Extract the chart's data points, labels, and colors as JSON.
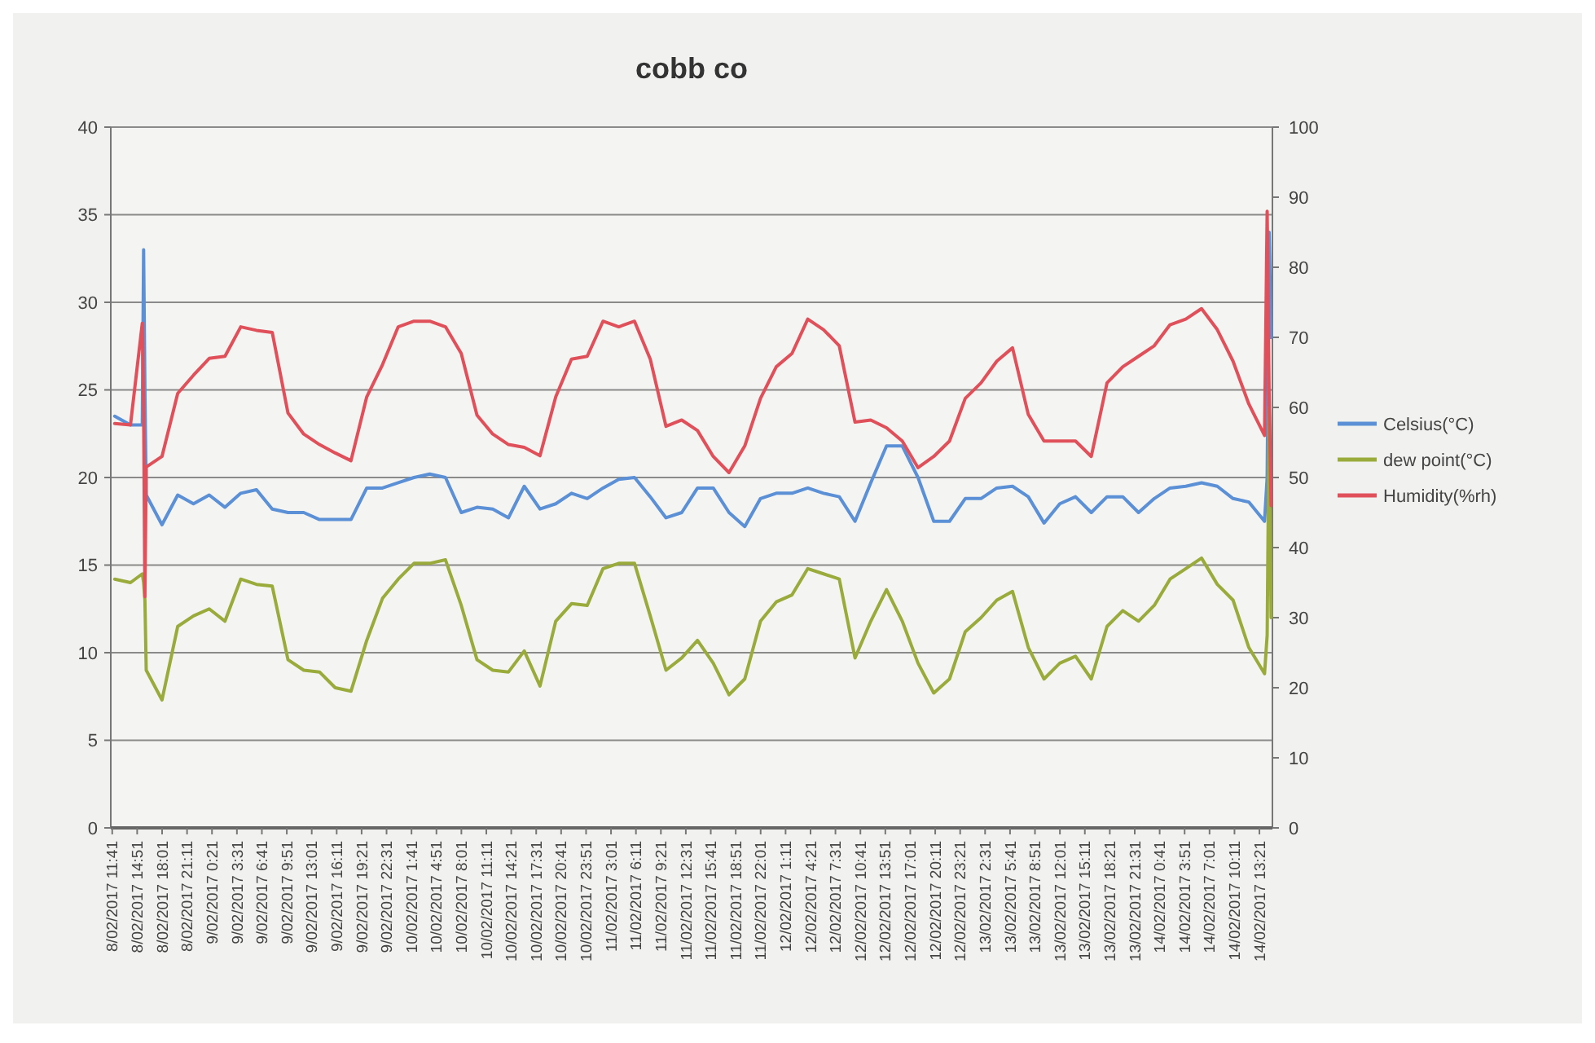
{
  "chart_data": {
    "type": "line",
    "title": "cobb co",
    "x": [
      "2017-02-08T12:00",
      "2017-02-08T14:00",
      "2017-02-08T15:30",
      "2017-02-08T15:40",
      "2017-02-08T15:50",
      "2017-02-08T16:00",
      "2017-02-08T18:00",
      "2017-02-08T20:00",
      "2017-02-08T22:00",
      "2017-02-09T00:00",
      "2017-02-09T02:00",
      "2017-02-09T04:00",
      "2017-02-09T06:00",
      "2017-02-09T08:00",
      "2017-02-09T10:00",
      "2017-02-09T12:00",
      "2017-02-09T14:00",
      "2017-02-09T16:00",
      "2017-02-09T18:00",
      "2017-02-09T20:00",
      "2017-02-09T22:00",
      "2017-02-10T00:00",
      "2017-02-10T02:00",
      "2017-02-10T04:00",
      "2017-02-10T06:00",
      "2017-02-10T08:00",
      "2017-02-10T10:00",
      "2017-02-10T12:00",
      "2017-02-10T14:00",
      "2017-02-10T16:00",
      "2017-02-10T18:00",
      "2017-02-10T20:00",
      "2017-02-10T22:00",
      "2017-02-11T00:00",
      "2017-02-11T02:00",
      "2017-02-11T04:00",
      "2017-02-11T06:00",
      "2017-02-11T08:00",
      "2017-02-11T10:00",
      "2017-02-11T12:00",
      "2017-02-11T14:00",
      "2017-02-11T16:00",
      "2017-02-11T18:00",
      "2017-02-11T20:00",
      "2017-02-11T22:00",
      "2017-02-12T00:00",
      "2017-02-12T02:00",
      "2017-02-12T04:00",
      "2017-02-12T06:00",
      "2017-02-12T08:00",
      "2017-02-12T10:00",
      "2017-02-12T12:00",
      "2017-02-12T14:00",
      "2017-02-12T16:00",
      "2017-02-12T18:00",
      "2017-02-12T20:00",
      "2017-02-12T22:00",
      "2017-02-13T00:00",
      "2017-02-13T02:00",
      "2017-02-13T04:00",
      "2017-02-13T06:00",
      "2017-02-13T08:00",
      "2017-02-13T10:00",
      "2017-02-13T12:00",
      "2017-02-13T14:00",
      "2017-02-13T16:00",
      "2017-02-13T18:00",
      "2017-02-13T20:00",
      "2017-02-13T22:00",
      "2017-02-14T00:00",
      "2017-02-14T02:00",
      "2017-02-14T04:00",
      "2017-02-14T06:00",
      "2017-02-14T08:00",
      "2017-02-14T10:00",
      "2017-02-14T12:00",
      "2017-02-14T14:00",
      "2017-02-14T14:20",
      "2017-02-14T14:35",
      "2017-02-14T14:50"
    ],
    "series": [
      {
        "name": "Celsius(°C)",
        "color": "#5b8fd6",
        "values": [
          23.5,
          23.0,
          23.0,
          33,
          25,
          19,
          17.3,
          19.0,
          18.5,
          19.0,
          18.3,
          19.1,
          19.3,
          18.2,
          18.0,
          18.0,
          17.6,
          17.6,
          17.6,
          19.4,
          19.4,
          19.7,
          20.0,
          20.2,
          20.0,
          18.0,
          18.3,
          18.2,
          17.7,
          19.5,
          18.2,
          18.5,
          19.1,
          18.8,
          19.4,
          19.9,
          20.0,
          18.9,
          17.7,
          18.0,
          19.4,
          19.4,
          18.0,
          17.2,
          18.8,
          19.1,
          19.1,
          19.4,
          19.1,
          18.9,
          17.5,
          19.7,
          21.8,
          21.8,
          20.0,
          17.5,
          17.5,
          18.8,
          18.8,
          19.4,
          19.5,
          18.9,
          17.4,
          18.5,
          18.9,
          18.0,
          18.9,
          18.9,
          18.0,
          18.8,
          19.4,
          19.5,
          19.7,
          19.5,
          18.8,
          18.6,
          17.5,
          20,
          34,
          28
        ]
      },
      {
        "name": "dew point(°C)",
        "color": "#9aab3c",
        "values": [
          14.2,
          14.0,
          14.5,
          14.0,
          13.0,
          9.0,
          7.3,
          11.5,
          12.1,
          12.5,
          11.8,
          14.2,
          13.9,
          13.8,
          9.6,
          9.0,
          8.9,
          8.0,
          7.8,
          10.7,
          13.1,
          14.2,
          15.1,
          15.1,
          15.3,
          12.7,
          9.6,
          9.0,
          8.9,
          10.1,
          8.1,
          11.8,
          12.8,
          12.7,
          14.8,
          15.1,
          15.1,
          12.1,
          9.0,
          9.7,
          10.7,
          9.4,
          7.6,
          8.5,
          11.8,
          12.9,
          13.3,
          14.8,
          14.5,
          14.2,
          9.7,
          11.8,
          13.6,
          11.8,
          9.4,
          7.7,
          8.5,
          11.2,
          12.0,
          13.0,
          13.5,
          10.3,
          8.5,
          9.4,
          9.8,
          8.5,
          11.5,
          12.4,
          11.8,
          12.7,
          14.2,
          14.8,
          15.4,
          13.9,
          13.0,
          10.3,
          8.8,
          11,
          24,
          12
        ]
      },
      {
        "name": "Humidity(%rh)",
        "color": "#e0505a",
        "axis": "y2",
        "values": [
          57.7,
          57.5,
          72,
          60,
          33,
          51.5,
          53,
          62,
          64.6,
          67,
          67.3,
          71.5,
          71,
          70.7,
          59.2,
          56.2,
          54.7,
          53.5,
          52.4,
          61.5,
          66.1,
          71.5,
          72.3,
          72.3,
          71.5,
          67.7,
          58.9,
          56.2,
          54.7,
          54.3,
          53.1,
          61.5,
          66.9,
          67.3,
          72.3,
          71.5,
          72.3,
          66.9,
          57.3,
          58.2,
          56.7,
          53,
          50.7,
          54.5,
          61.3,
          65.8,
          67.7,
          72.6,
          71.1,
          68.8,
          57.9,
          58.2,
          57.1,
          55.2,
          51.4,
          53,
          55.2,
          61.3,
          63.5,
          66.6,
          68.5,
          59,
          55.2,
          55.2,
          55.2,
          53,
          63.5,
          65.8,
          67.3,
          68.8,
          71.8,
          72.6,
          74.1,
          71.1,
          66.6,
          60.5,
          56,
          88,
          62,
          46
        ]
      }
    ],
    "xlim": [
      "2017-02-08T11:30",
      "2017-02-14T15:00"
    ],
    "xticks": [
      {
        "value": "2017-02-08T11:41",
        "label": "8/02/2017 11:41"
      },
      {
        "value": "2017-02-08T14:51",
        "label": "8/02/2017 14:51"
      },
      {
        "value": "2017-02-08T18:01",
        "label": "8/02/2017 18:01"
      },
      {
        "value": "2017-02-08T21:11",
        "label": "8/02/2017 21:11"
      },
      {
        "value": "2017-02-09T00:21",
        "label": "9/02/2017 0:21"
      },
      {
        "value": "2017-02-09T03:31",
        "label": "9/02/2017 3:31"
      },
      {
        "value": "2017-02-09T06:41",
        "label": "9/02/2017 6:41"
      },
      {
        "value": "2017-02-09T09:51",
        "label": "9/02/2017 9:51"
      },
      {
        "value": "2017-02-09T13:01",
        "label": "9/02/2017 13:01"
      },
      {
        "value": "2017-02-09T16:11",
        "label": "9/02/2017 16:11"
      },
      {
        "value": "2017-02-09T19:21",
        "label": "9/02/2017 19:21"
      },
      {
        "value": "2017-02-09T22:31",
        "label": "9/02/2017 22:31"
      },
      {
        "value": "2017-02-10T01:41",
        "label": "10/02/2017 1:41"
      },
      {
        "value": "2017-02-10T04:51",
        "label": "10/02/2017 4:51"
      },
      {
        "value": "2017-02-10T08:01",
        "label": "10/02/2017 8:01"
      },
      {
        "value": "2017-02-10T11:11",
        "label": "10/02/2017 11:11"
      },
      {
        "value": "2017-02-10T14:21",
        "label": "10/02/2017 14:21"
      },
      {
        "value": "2017-02-10T17:31",
        "label": "10/02/2017 17:31"
      },
      {
        "value": "2017-02-10T20:41",
        "label": "10/02/2017 20:41"
      },
      {
        "value": "2017-02-10T23:51",
        "label": "10/02/2017 23:51"
      },
      {
        "value": "2017-02-11T03:01",
        "label": "11/02/2017 3:01"
      },
      {
        "value": "2017-02-11T06:11",
        "label": "11/02/2017 6:11"
      },
      {
        "value": "2017-02-11T09:21",
        "label": "11/02/2017 9:21"
      },
      {
        "value": "2017-02-11T12:31",
        "label": "11/02/2017 12:31"
      },
      {
        "value": "2017-02-11T15:41",
        "label": "11/02/2017 15:41"
      },
      {
        "value": "2017-02-11T18:51",
        "label": "11/02/2017 18:51"
      },
      {
        "value": "2017-02-11T22:01",
        "label": "11/02/2017 22:01"
      },
      {
        "value": "2017-02-12T01:11",
        "label": "12/02/2017 1:11"
      },
      {
        "value": "2017-02-12T04:21",
        "label": "12/02/2017 4:21"
      },
      {
        "value": "2017-02-12T07:31",
        "label": "12/02/2017 7:31"
      },
      {
        "value": "2017-02-12T10:41",
        "label": "12/02/2017 10:41"
      },
      {
        "value": "2017-02-12T13:51",
        "label": "12/02/2017 13:51"
      },
      {
        "value": "2017-02-12T17:01",
        "label": "12/02/2017 17:01"
      },
      {
        "value": "2017-02-12T20:11",
        "label": "12/02/2017 20:11"
      },
      {
        "value": "2017-02-12T23:21",
        "label": "12/02/2017 23:21"
      },
      {
        "value": "2017-02-13T02:31",
        "label": "13/02/2017 2:31"
      },
      {
        "value": "2017-02-13T05:41",
        "label": "13/02/2017 5:41"
      },
      {
        "value": "2017-02-13T08:51",
        "label": "13/02/2017 8:51"
      },
      {
        "value": "2017-02-13T12:01",
        "label": "13/02/2017 12:01"
      },
      {
        "value": "2017-02-13T15:11",
        "label": "13/02/2017 15:11"
      },
      {
        "value": "2017-02-13T18:21",
        "label": "13/02/2017 18:21"
      },
      {
        "value": "2017-02-13T21:31",
        "label": "13/02/2017 21:31"
      },
      {
        "value": "2017-02-14T00:41",
        "label": "14/02/2017 0:41"
      },
      {
        "value": "2017-02-14T03:51",
        "label": "14/02/2017 3:51"
      },
      {
        "value": "2017-02-14T07:01",
        "label": "14/02/2017 7:01"
      },
      {
        "value": "2017-02-14T10:11",
        "label": "14/02/2017 10:11"
      },
      {
        "value": "2017-02-14T13:21",
        "label": "14/02/2017 13:21"
      }
    ],
    "ylim": [
      0,
      40
    ],
    "yticks": [
      0,
      5,
      10,
      15,
      20,
      25,
      30,
      35,
      40
    ],
    "y2lim": [
      0,
      100
    ],
    "y2ticks": [
      0,
      10,
      20,
      30,
      40,
      50,
      60,
      70,
      80,
      90,
      100
    ],
    "grid": "y",
    "legend": "right",
    "line_style": "solid"
  }
}
